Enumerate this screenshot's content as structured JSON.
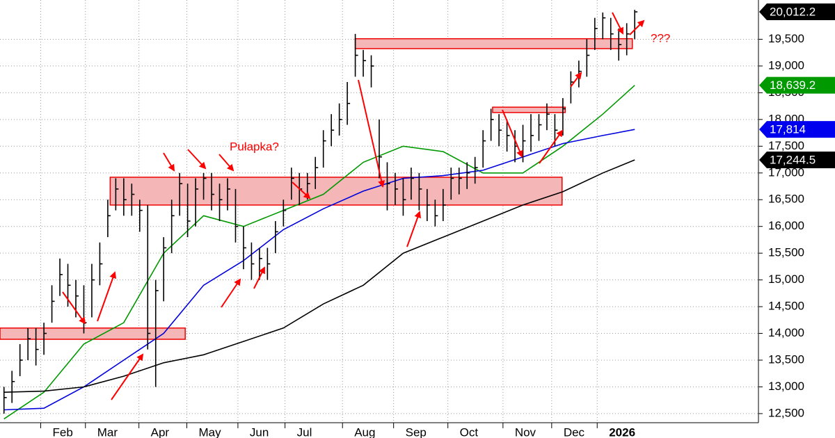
{
  "chart_data": {
    "type": "ohlc",
    "xlim": [
      -0.5,
      94.5
    ],
    "ylim": [
      12330,
      20234
    ],
    "xticks": [
      {
        "value": 4.6,
        "label": "Feb"
      },
      {
        "value": 10.2,
        "label": "Mar"
      },
      {
        "value": 16.9,
        "label": "Apr"
      },
      {
        "value": 22.9,
        "label": "May"
      },
      {
        "value": 29.3,
        "label": "Jun"
      },
      {
        "value": 35.2,
        "label": "Jul"
      },
      {
        "value": 42.4,
        "label": "Aug"
      },
      {
        "value": 48.8,
        "label": "Sep"
      },
      {
        "value": 55.6,
        "label": "Oct"
      },
      {
        "value": 62.5,
        "label": "Nov"
      },
      {
        "value": 68.6,
        "label": "Dec"
      },
      {
        "value": 74.3,
        "label": "2026"
      }
    ],
    "yticks": [
      {
        "value": 12500,
        "label": "12,500"
      },
      {
        "value": 13000,
        "label": "13,000"
      },
      {
        "value": 13500,
        "label": "13,500"
      },
      {
        "value": 14000,
        "label": "14,000"
      },
      {
        "value": 14500,
        "label": "14,500"
      },
      {
        "value": 15000,
        "label": "15,000"
      },
      {
        "value": 15500,
        "label": "15,500"
      },
      {
        "value": 16000,
        "label": "16,000"
      },
      {
        "value": 16500,
        "label": "16,500"
      },
      {
        "value": 17000,
        "label": "17,000"
      },
      {
        "value": 17500,
        "label": "17,500"
      },
      {
        "value": 18000,
        "label": "18,000"
      },
      {
        "value": 18500,
        "label": "18,500"
      },
      {
        "value": 19000,
        "label": "19,000"
      },
      {
        "value": 19500,
        "label": "19,500"
      }
    ],
    "grid": true,
    "bar_color": "#000000",
    "high": [
      13000,
      13300,
      13800,
      14100,
      14100,
      14200,
      14900,
      15400,
      15300,
      15000,
      14900,
      15300,
      15700,
      16500,
      16900,
      16900,
      16800,
      16500,
      16400,
      15000,
      15800,
      16500,
      17000,
      16800,
      16900,
      17000,
      17000,
      16800,
      16900,
      16700,
      16000,
      15700,
      15600,
      15600,
      16100,
      16500,
      17100,
      17000,
      17000,
      17300,
      17800,
      18100,
      18300,
      18700,
      19600,
      19300,
      19200,
      18000,
      17200,
      17000,
      16900,
      17100,
      17000,
      16700,
      16500,
      16700,
      17100,
      17100,
      17200,
      17300,
      17800,
      18200,
      18100,
      18000,
      17800,
      17900,
      18100,
      18100,
      18300,
      18100,
      18400,
      18900,
      19100,
      19500,
      19900,
      20000,
      19900,
      19700,
      19800,
      20050
    ],
    "low": [
      12500,
      12700,
      13200,
      13500,
      13400,
      13600,
      14200,
      14700,
      14500,
      14300,
      14000,
      14300,
      14900,
      15800,
      16300,
      16200,
      16200,
      15900,
      13700,
      13000,
      14600,
      15500,
      16200,
      15800,
      16000,
      16500,
      16300,
      16100,
      16300,
      15700,
      15200,
      15000,
      15000,
      15000,
      15500,
      16000,
      16500,
      16400,
      16500,
      16700,
      17100,
      17500,
      17700,
      17900,
      18800,
      18800,
      18600,
      16900,
      16300,
      16400,
      16200,
      16500,
      16300,
      16100,
      16000,
      16100,
      16500,
      16600,
      16700,
      16800,
      17100,
      17600,
      17500,
      17400,
      17200,
      17200,
      17400,
      17600,
      17800,
      17500,
      17700,
      18300,
      18600,
      18800,
      19300,
      19500,
      19300,
      19100,
      19200,
      19500
    ],
    "close": [
      12800,
      13100,
      13500,
      13900,
      13700,
      14000,
      14600,
      15100,
      14900,
      14700,
      14200,
      15000,
      15300,
      16200,
      16700,
      16500,
      16600,
      16300,
      14000,
      14800,
      15600,
      16200,
      16800,
      16100,
      16700,
      16900,
      16600,
      16500,
      16700,
      16000,
      15600,
      15300,
      15400,
      15300,
      15900,
      16300,
      16900,
      16700,
      16800,
      17100,
      17600,
      17800,
      18000,
      18300,
      19200,
      19100,
      19000,
      17300,
      16800,
      16700,
      16500,
      16900,
      16700,
      16400,
      16200,
      16400,
      16900,
      16900,
      17000,
      17100,
      17600,
      18000,
      17800,
      17700,
      17500,
      17600,
      17700,
      17900,
      18100,
      17800,
      18200,
      18700,
      18900,
      19200,
      19700,
      19900,
      19600,
      19400,
      19600,
      20012
    ],
    "series": [
      {
        "color": "#009900",
        "x": [
          0,
          5,
          10,
          15,
          20,
          25,
          30,
          35,
          40,
          45,
          50,
          55,
          60,
          65,
          70,
          75,
          79
        ],
        "values": [
          12400,
          12900,
          13800,
          14200,
          15500,
          16200,
          16000,
          16300,
          16600,
          17200,
          17500,
          17400,
          17000,
          17000,
          17500,
          18100,
          18639.2
        ]
      },
      {
        "color": "#0000dd",
        "x": [
          0,
          5,
          10,
          15,
          20,
          25,
          30,
          35,
          40,
          45,
          50,
          55,
          60,
          65,
          70,
          75,
          79
        ],
        "values": [
          12570,
          12600,
          13000,
          13500,
          14000,
          14900,
          15360,
          15940,
          16330,
          16660,
          16900,
          16950,
          17050,
          17300,
          17550,
          17700,
          17814
        ]
      },
      {
        "color": "#000000",
        "x": [
          0,
          5,
          10,
          15,
          20,
          25,
          30,
          35,
          40,
          45,
          50,
          55,
          60,
          65,
          70,
          75,
          79
        ],
        "values": [
          12900,
          12920,
          13000,
          13200,
          13450,
          13600,
          13850,
          14100,
          14550,
          14900,
          15500,
          15800,
          16100,
          16400,
          16650,
          17000,
          17244.5
        ]
      }
    ],
    "zones": [
      {
        "x": [
          -0.5,
          22.7
        ],
        "y": [
          13890,
          14100
        ]
      },
      {
        "x": [
          13.3,
          69.9
        ],
        "y": [
          16400,
          16920
        ]
      },
      {
        "x": [
          44.0,
          78.7
        ],
        "y": [
          19325,
          19510
        ]
      },
      {
        "x": [
          61.2,
          70.3
        ],
        "y": [
          18130,
          18230
        ]
      }
    ],
    "zone_color": "#f4b6b6",
    "price_tags": [
      {
        "value": 20012.2,
        "label": "20,012.2",
        "color": "#000000"
      },
      {
        "value": 18639.2,
        "label": "18,639.2",
        "color": "#009900"
      },
      {
        "value": 17814,
        "label": "17,814",
        "color": "#0000ee"
      },
      {
        "value": 17244.5,
        "label": "17,244.5",
        "color": "#000000"
      }
    ],
    "annotations": [
      "Pułapka?",
      "???"
    ]
  }
}
